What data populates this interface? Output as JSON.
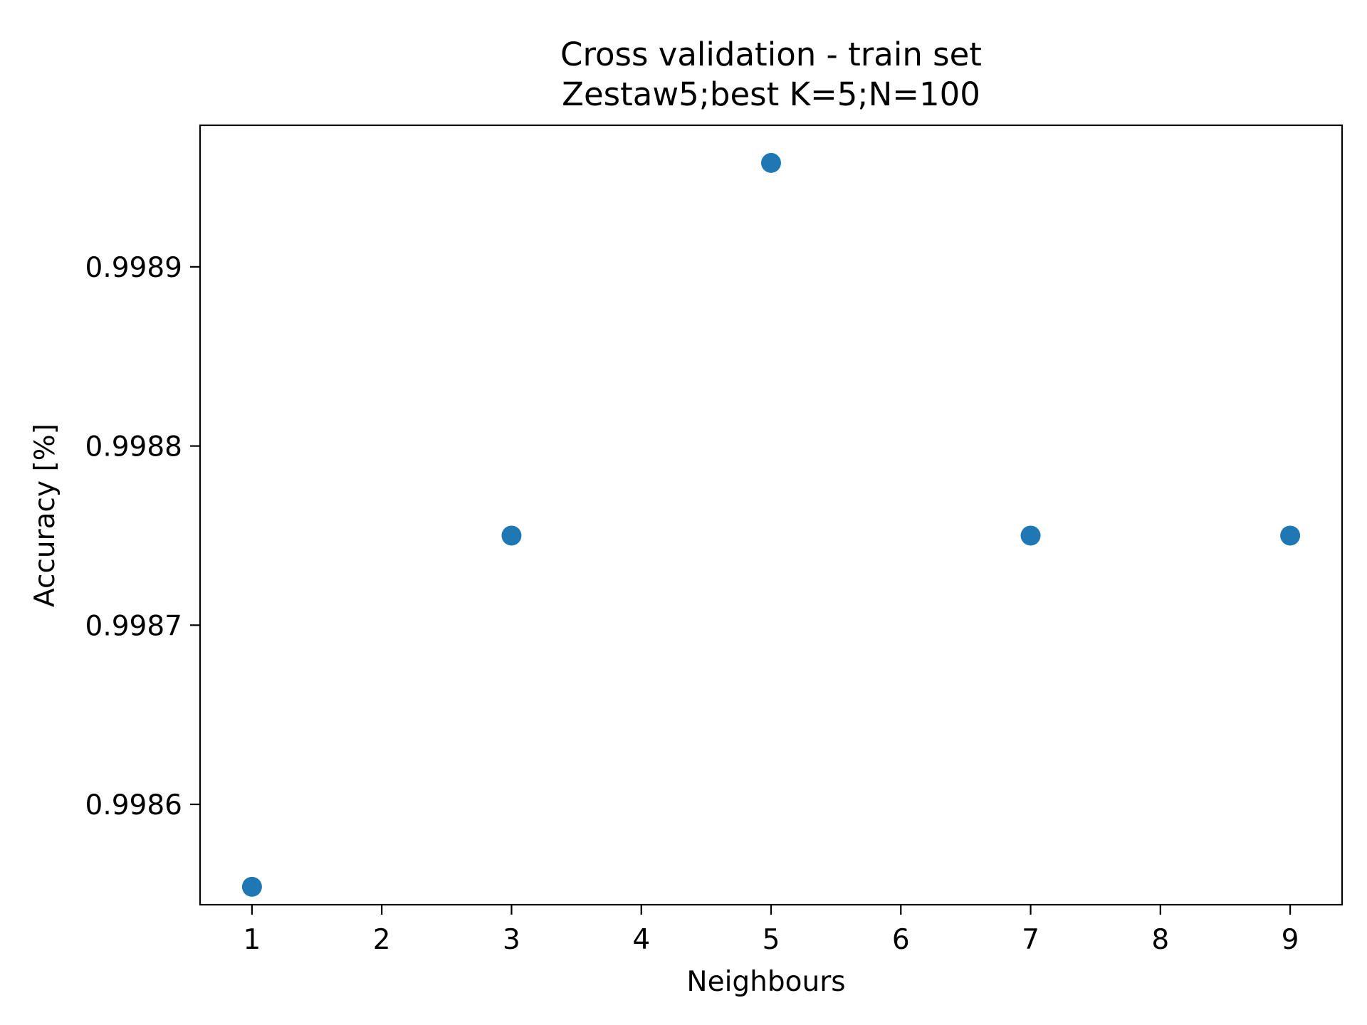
{
  "chart_data": {
    "type": "scatter",
    "title": "Cross validation - train set",
    "subtitle": "Zestaw5;best K=5;N=100",
    "xlabel": "Neighbours",
    "ylabel": "Accuracy [%]",
    "x": [
      1,
      3,
      5,
      7,
      9
    ],
    "y": [
      0.998554,
      0.99875,
      0.998958,
      0.99875,
      0.99875
    ],
    "xlim": [
      0.6,
      9.4
    ],
    "ylim": [
      0.998544,
      0.998979
    ],
    "xticks": [
      1,
      2,
      3,
      4,
      5,
      6,
      7,
      8,
      9
    ],
    "yticks": [
      0.9986,
      0.9987,
      0.9988,
      0.9989
    ],
    "ytick_labels": [
      "0.9986",
      "0.9987",
      "0.9988",
      "0.9989"
    ],
    "marker_color": "#1f77b4",
    "grid": false,
    "legend": false
  }
}
